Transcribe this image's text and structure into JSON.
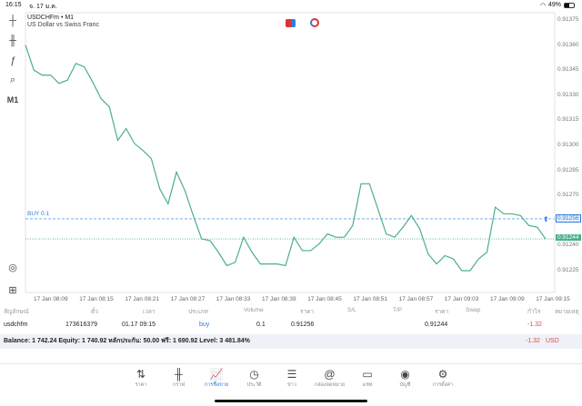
{
  "status_bar": {
    "time": "16:15",
    "date": "จ. 17 ม.ค.",
    "battery": "49%"
  },
  "chart": {
    "symbol": "USDCHFm • M1",
    "description": "US Dollar vs Swiss Franc",
    "timeframe_button": "M1",
    "y_ticks": [
      "0.91375",
      "0.91360",
      "0.91345",
      "0.91330",
      "0.91315",
      "0.91300",
      "0.91285",
      "0.91270",
      "0.91240",
      "0.91225"
    ],
    "x_ticks": [
      "17 Jan 08:09",
      "17 Jan 08:15",
      "17 Jan 08:21",
      "17 Jan 08:27",
      "17 Jan 08:33",
      "17 Jan 08:39",
      "17 Jan 08:45",
      "17 Jan 08:51",
      "17 Jan 08:57",
      "17 Jan 09:03",
      "17 Jan 09:09",
      "17 Jan 09:15"
    ],
    "order_line_label": "BUY 0.1",
    "order_price": "0.91256",
    "bid_price": "0.91244",
    "line_color": "#4caf8a",
    "order_color": "#2a7de1",
    "chart_data": {
      "type": "line",
      "x_start": "17 Jan 08:06",
      "x_end": "17 Jan 09:14",
      "ylim": [
        0.9122,
        0.9138
      ],
      "values": [
        0.9136,
        0.91345,
        0.91342,
        0.91342,
        0.91337,
        0.91339,
        0.91349,
        0.91347,
        0.91338,
        0.91328,
        0.91323,
        0.91303,
        0.9131,
        0.91301,
        0.91297,
        0.91292,
        0.91274,
        0.91265,
        0.91284,
        0.91273,
        0.91258,
        0.91244,
        0.91243,
        0.91236,
        0.91228,
        0.9123,
        0.91245,
        0.91236,
        0.91229,
        0.91229,
        0.91229,
        0.91228,
        0.91245,
        0.91237,
        0.91237,
        0.91241,
        0.91247,
        0.91245,
        0.91245,
        0.91252,
        0.91277,
        0.91277,
        0.91262,
        0.91247,
        0.91245,
        0.91251,
        0.91258,
        0.9125,
        0.91235,
        0.91229,
        0.91234,
        0.91232,
        0.91225,
        0.91225,
        0.91232,
        0.91236,
        0.91263,
        0.91259,
        0.91259,
        0.91258,
        0.91252,
        0.91251,
        0.91244
      ]
    }
  },
  "table": {
    "headers": [
      "สัญลักษณ์",
      "ตั๋ว",
      "เวลา",
      "ประเภท",
      "Volume",
      "ราคา",
      "S/L",
      "T/P",
      "ราคา",
      "Swap",
      "กำไร",
      "หมายเหตุ"
    ],
    "row": {
      "symbol": "usdchfm",
      "ticket": "173616379",
      "time": "01.17 09:15",
      "type": "buy",
      "volume": "0.1",
      "open_price": "0.91256",
      "current_price": "0.91244",
      "profit": "-1.32"
    },
    "balance": "Balance: 1 742.24 Equity: 1 740.92 หลักประกัน: 50.00 ฟรี: 1 690.92 Level: 3 481.84%",
    "total_profit": "-1.32",
    "currency": "USD"
  },
  "nav": [
    {
      "label": "ราคา",
      "icon": "quotes-icon"
    },
    {
      "label": "กราฟ",
      "icon": "chart-icon"
    },
    {
      "label": "การซื้อขาย",
      "icon": "trade-icon"
    },
    {
      "label": "ประวัติ",
      "icon": "history-icon"
    },
    {
      "label": "ข่าว",
      "icon": "news-icon"
    },
    {
      "label": "กล่องจดหมาย",
      "icon": "mailbox-icon"
    },
    {
      "label": "แชท",
      "icon": "chat-icon"
    },
    {
      "label": "บัญชี",
      "icon": "account-icon"
    },
    {
      "label": "การตั้งค่า",
      "icon": "settings-icon"
    }
  ]
}
